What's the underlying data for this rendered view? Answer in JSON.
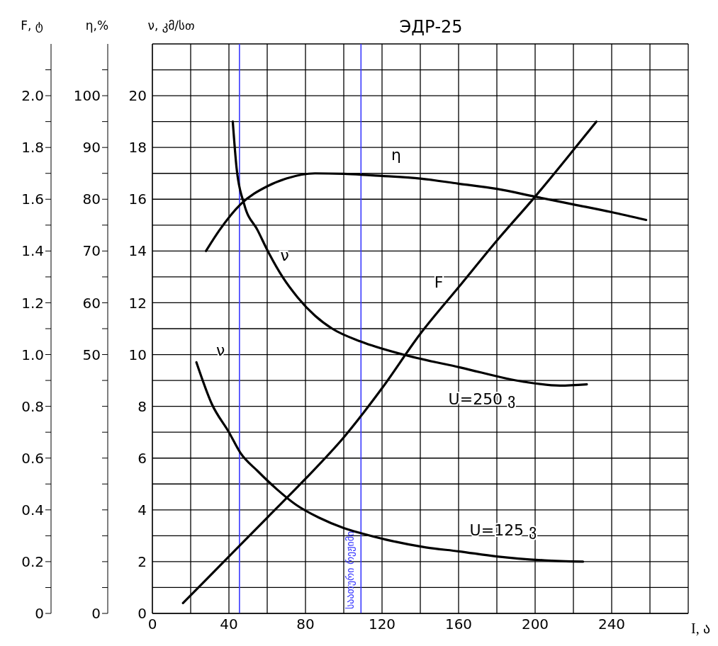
{
  "chart_data": {
    "type": "line",
    "title": "ЭДР-25",
    "xlabel": "I, ა",
    "ylabel": "ν, კმ/სთ",
    "y2label": "η,%",
    "y3label": "F, ტ",
    "xlim": [
      0,
      280
    ],
    "xticks": [
      0,
      {
        "value": 20,
        "label": null
      },
      40,
      {
        "value": 60,
        "label": null
      },
      80,
      {
        "value": 100,
        "label": null
      },
      120,
      {
        "value": 140,
        "label": null
      },
      160,
      {
        "value": 180,
        "label": null
      },
      200,
      {
        "value": 220,
        "label": null
      },
      240,
      {
        "value": 260,
        "label": null
      },
      {
        "value": 280,
        "label": null
      }
    ],
    "ylim": [
      0,
      22
    ],
    "yticks": [
      0,
      {
        "value": 1,
        "label": null
      },
      2,
      {
        "value": 3,
        "label": null
      },
      4,
      {
        "value": 5,
        "label": null
      },
      6,
      {
        "value": 7,
        "label": null
      },
      8,
      {
        "value": 9,
        "label": null
      },
      10,
      {
        "value": 11,
        "label": null
      },
      12,
      {
        "value": 13,
        "label": null
      },
      14,
      {
        "value": 15,
        "label": null
      },
      16,
      {
        "value": 17,
        "label": null
      },
      18,
      {
        "value": 19,
        "label": null
      },
      20,
      {
        "value": 21,
        "label": null
      },
      {
        "value": 22,
        "label": null
      }
    ],
    "y2lim": [
      0,
      110
    ],
    "y2ticks": [
      0,
      {
        "value": 5,
        "label": null
      },
      {
        "value": 10,
        "label": null
      },
      {
        "value": 15,
        "label": null
      },
      {
        "value": 20,
        "label": null
      },
      {
        "value": 25,
        "label": null
      },
      {
        "value": 30,
        "label": null
      },
      {
        "value": 35,
        "label": null
      },
      {
        "value": 40,
        "label": null
      },
      {
        "value": 45,
        "label": null
      },
      50,
      {
        "value": 55,
        "label": null
      },
      60,
      {
        "value": 65,
        "label": null
      },
      70,
      {
        "value": 75,
        "label": null
      },
      80,
      {
        "value": 85,
        "label": null
      },
      90,
      {
        "value": 95,
        "label": null
      },
      100,
      {
        "value": 105,
        "label": null
      }
    ],
    "y3lim": [
      0,
      2.2
    ],
    "y3ticks": [
      0,
      {
        "value": 0.1,
        "label": null
      },
      0.2,
      {
        "value": 0.3,
        "label": null
      },
      {
        "value": 0.4,
        "label": "0.4"
      },
      {
        "value": 0.5,
        "label": null
      },
      {
        "value": 0.6,
        "label": "0.6"
      },
      {
        "value": 0.7,
        "label": null
      },
      {
        "value": 0.8,
        "label": "0.8"
      },
      {
        "value": 0.9,
        "label": null
      },
      {
        "value": 1.0,
        "label": "1.0"
      },
      {
        "value": 1.1,
        "label": null
      },
      {
        "value": 1.2,
        "label": "1.2"
      },
      {
        "value": 1.3,
        "label": null
      },
      {
        "value": 1.4,
        "label": "1.4"
      },
      {
        "value": 1.5,
        "label": null
      },
      {
        "value": 1.6,
        "label": "1.6"
      },
      {
        "value": 1.7,
        "label": null
      },
      {
        "value": 1.8,
        "label": "1.8"
      },
      {
        "value": 1.9,
        "label": null
      },
      {
        "value": 2.0,
        "label": "2.0"
      },
      {
        "value": 2.1,
        "label": null
      }
    ],
    "grid": true,
    "legend": false,
    "marker": "none",
    "line_style": "solid",
    "series": [
      {
        "name": "F",
        "color": "#000000",
        "axis": "y3",
        "x": [
          16,
          40,
          60,
          80,
          100,
          120,
          140,
          160,
          180,
          200,
          220,
          232
        ],
        "values": [
          0.04,
          0.22,
          0.37,
          0.52,
          0.68,
          0.87,
          1.08,
          1.26,
          1.44,
          1.61,
          1.79,
          1.9
        ]
      },
      {
        "name": "η",
        "color": "#000000",
        "axis": "y2",
        "x": [
          28,
          35,
          46,
          60,
          70,
          85,
          100,
          120,
          140,
          160,
          180,
          200,
          220,
          240,
          258
        ],
        "values": [
          70,
          74,
          79,
          82.5,
          84,
          85,
          84.9,
          84.5,
          84,
          83,
          82,
          80.5,
          79,
          77.5,
          76
        ]
      },
      {
        "name": "ν",
        "color": "#000000",
        "x": [
          42,
          44,
          48,
          55,
          61,
          68,
          76,
          85,
          94,
          109,
          131,
          161,
          194,
          213,
          227
        ],
        "values": [
          19,
          17.2,
          15.8,
          14.8,
          13.9,
          13,
          12.2,
          11.5,
          11,
          10.5,
          10,
          9.5,
          8.95,
          8.8,
          8.85
        ]
      },
      {
        "name": "ν",
        "color": "#000000",
        "x": [
          23,
          31,
          40,
          46,
          55,
          65,
          75,
          87,
          100,
          109,
          125,
          143,
          160,
          180,
          205,
          225
        ],
        "values": [
          9.7,
          8.1,
          7,
          6.2,
          5.5,
          4.8,
          4.2,
          3.7,
          3.3,
          3.1,
          2.8,
          2.55,
          2.4,
          2.2,
          2.05,
          2
        ]
      }
    ],
    "ref_lines": [
      {
        "axis": "x",
        "value": 45.5,
        "color": "#3a3aff"
      },
      {
        "axis": "x",
        "value": 109,
        "label": "საათური რეჟიმი",
        "color": "#3a3aff"
      }
    ],
    "annotations": [
      "U=250 ვ",
      "U=125 ვ"
    ]
  }
}
